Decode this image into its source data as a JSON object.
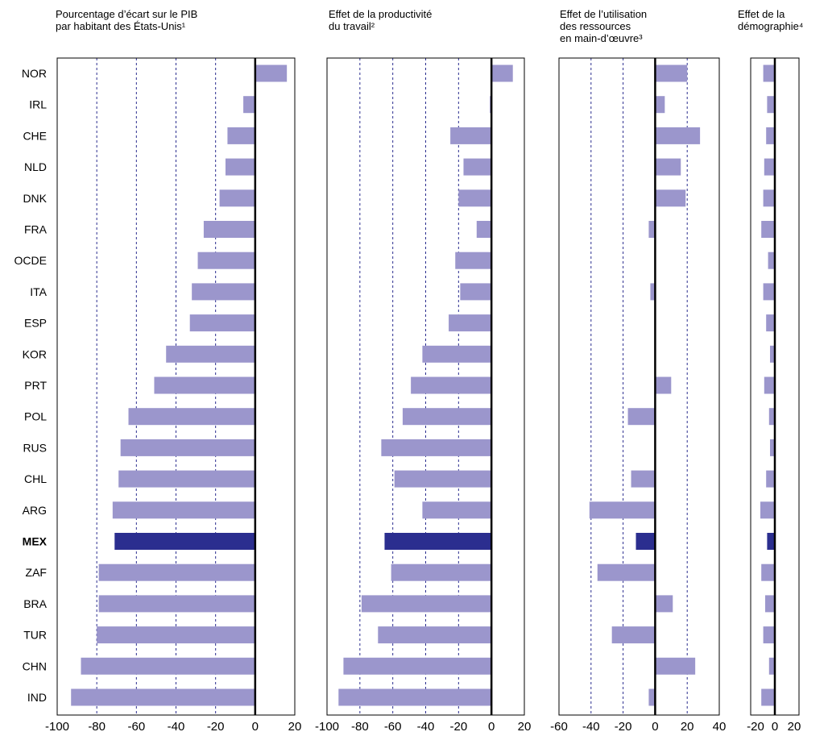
{
  "chart_data": {
    "type": "bar",
    "orientation": "horizontal",
    "highlight_category": "MEX",
    "categories": [
      "NOR",
      "IRL",
      "CHE",
      "NLD",
      "DNK",
      "FRA",
      "OCDE",
      "ITA",
      "ESP",
      "KOR",
      "PRT",
      "POL",
      "RUS",
      "CHL",
      "ARG",
      "MEX",
      "ZAF",
      "BRA",
      "TUR",
      "CHN",
      "IND"
    ],
    "colors": {
      "bar": "#9b96cc",
      "highlight": "#2b2e8f",
      "grid": "#2b2e8f",
      "axis": "#000000"
    },
    "panels": [
      {
        "title": "Pourcentage d’écart sur le PIB\npar habitant des États-Unis¹",
        "xlim": [
          -100,
          20
        ],
        "ticks": [
          -100,
          -80,
          -60,
          -40,
          -20,
          0,
          20
        ],
        "tick_labels": [
          "-100",
          "-80",
          "-60",
          "-40",
          "-20",
          "0",
          "20"
        ],
        "gridlines": [
          -80,
          -60,
          -40,
          -20
        ],
        "values": [
          16,
          -6,
          -14,
          -15,
          -18,
          -26,
          -29,
          -32,
          -33,
          -45,
          -51,
          -64,
          -68,
          -69,
          -72,
          -71,
          -79,
          -79,
          -80,
          -88,
          -93
        ]
      },
      {
        "title": "Effet de la productivité\ndu travail²",
        "xlim": [
          -100,
          20
        ],
        "ticks": [
          -100,
          -80,
          -60,
          -40,
          -20,
          0,
          20
        ],
        "tick_labels": [
          "-100",
          "-80",
          "-60",
          "-40",
          "-20",
          "0",
          "20"
        ],
        "gridlines": [
          -80,
          -60,
          -40,
          -20,
          20
        ],
        "values": [
          13,
          -1,
          -25,
          -17,
          -20,
          -9,
          -22,
          -19,
          -26,
          -42,
          -49,
          -54,
          -67,
          -59,
          -42,
          -65,
          -61,
          -79,
          -69,
          -90,
          -93
        ]
      },
      {
        "title": "Effet de l’utilisation\ndes ressources\nen main-d’œuvre³",
        "xlim": [
          -60,
          40
        ],
        "ticks": [
          -60,
          -40,
          -20,
          0,
          20,
          40
        ],
        "tick_labels": [
          "-60",
          "-40",
          "-20",
          "0",
          "20",
          "40"
        ],
        "gridlines": [
          -40,
          -20,
          20
        ],
        "values": [
          20,
          6,
          28,
          16,
          19,
          -4,
          0,
          -3,
          0,
          0,
          10,
          -17,
          0,
          -15,
          -41,
          -12,
          -36,
          11,
          -27,
          25,
          -4
        ]
      },
      {
        "title": "Effet de la\ndémographie⁴",
        "xlim": [
          -25,
          25
        ],
        "ticks": [
          -20,
          0,
          20
        ],
        "tick_labels": [
          "-20",
          "0",
          "20"
        ],
        "gridlines": [],
        "values": [
          -12,
          -8,
          -9,
          -11,
          -12,
          -14,
          -7,
          -12,
          -9,
          -5,
          -11,
          -6,
          -5,
          -9,
          -15,
          -8,
          -14,
          -10,
          -12,
          -6,
          -14
        ]
      }
    ]
  }
}
